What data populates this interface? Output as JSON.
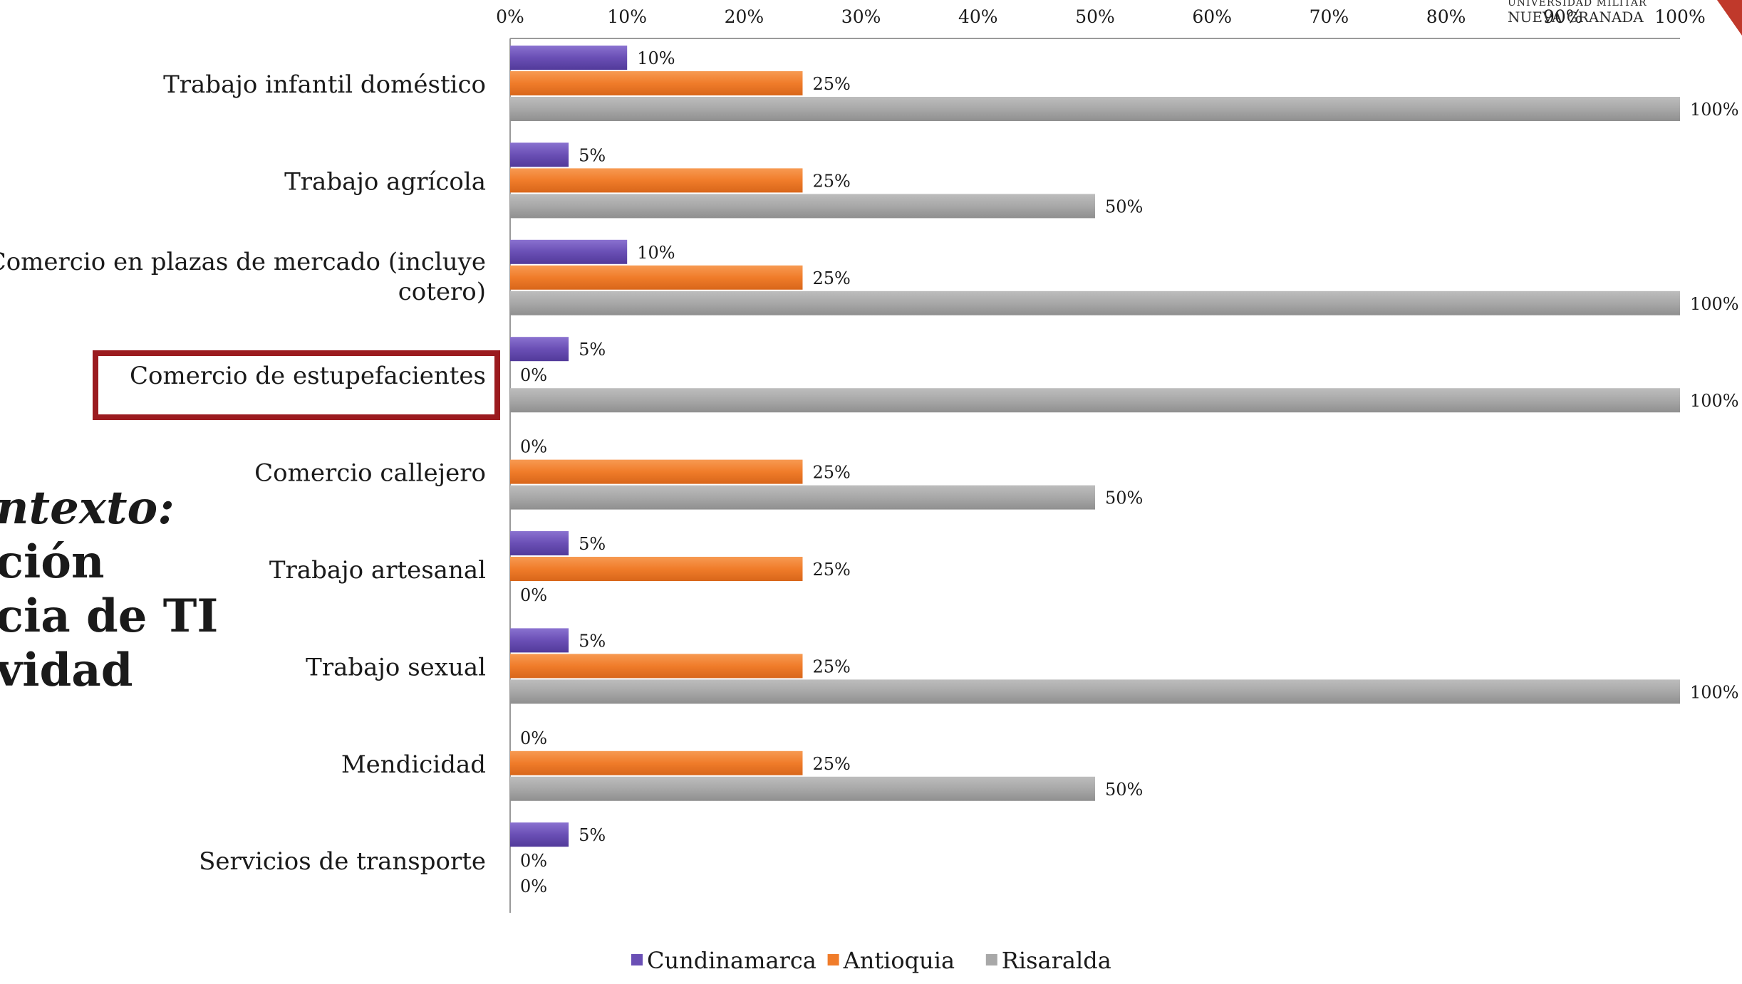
{
  "side_text": [
    "ntexto:",
    "ción",
    "cia de TI",
    "vidad"
  ],
  "logo": {
    "line1": "UNIVERSIDAD MILITAR",
    "line2": "NUEVA GRANADA"
  },
  "accent_colors": {
    "highlight_box": "#9b1b1f",
    "corner": "#c0392b"
  },
  "chart_data": {
    "type": "bar",
    "orientation": "horizontal",
    "categories": [
      "Trabajo infantil doméstico",
      "Trabajo agrícola",
      "Comercio en plazas de mercado (incluye cotero)",
      "Comercio de estupefacientes",
      "Comercio callejero",
      "Trabajo artesanal",
      "Trabajo sexual",
      "Mendicidad",
      "Servicios de transporte"
    ],
    "series": [
      {
        "name": "Cundinamarca",
        "color": "#6a4fb5",
        "values": [
          10,
          5,
          10,
          5,
          0,
          5,
          5,
          0,
          5
        ]
      },
      {
        "name": "Antioquia",
        "color": "#f07c2a",
        "values": [
          25,
          25,
          25,
          0,
          25,
          25,
          25,
          25,
          0
        ]
      },
      {
        "name": "Risaralda",
        "color": "#a8a8a8",
        "values": [
          100,
          50,
          100,
          100,
          50,
          0,
          100,
          50,
          0
        ]
      }
    ],
    "xlim": [
      0,
      100
    ],
    "x_ticks": [
      "0%",
      "10%",
      "20%",
      "30%",
      "40%",
      "50%",
      "60%",
      "70%",
      "80%",
      "90%",
      "100%"
    ],
    "value_suffix": "%",
    "legend_position": "bottom",
    "highlighted_category": "Comercio de estupefacientes",
    "grid": false
  }
}
